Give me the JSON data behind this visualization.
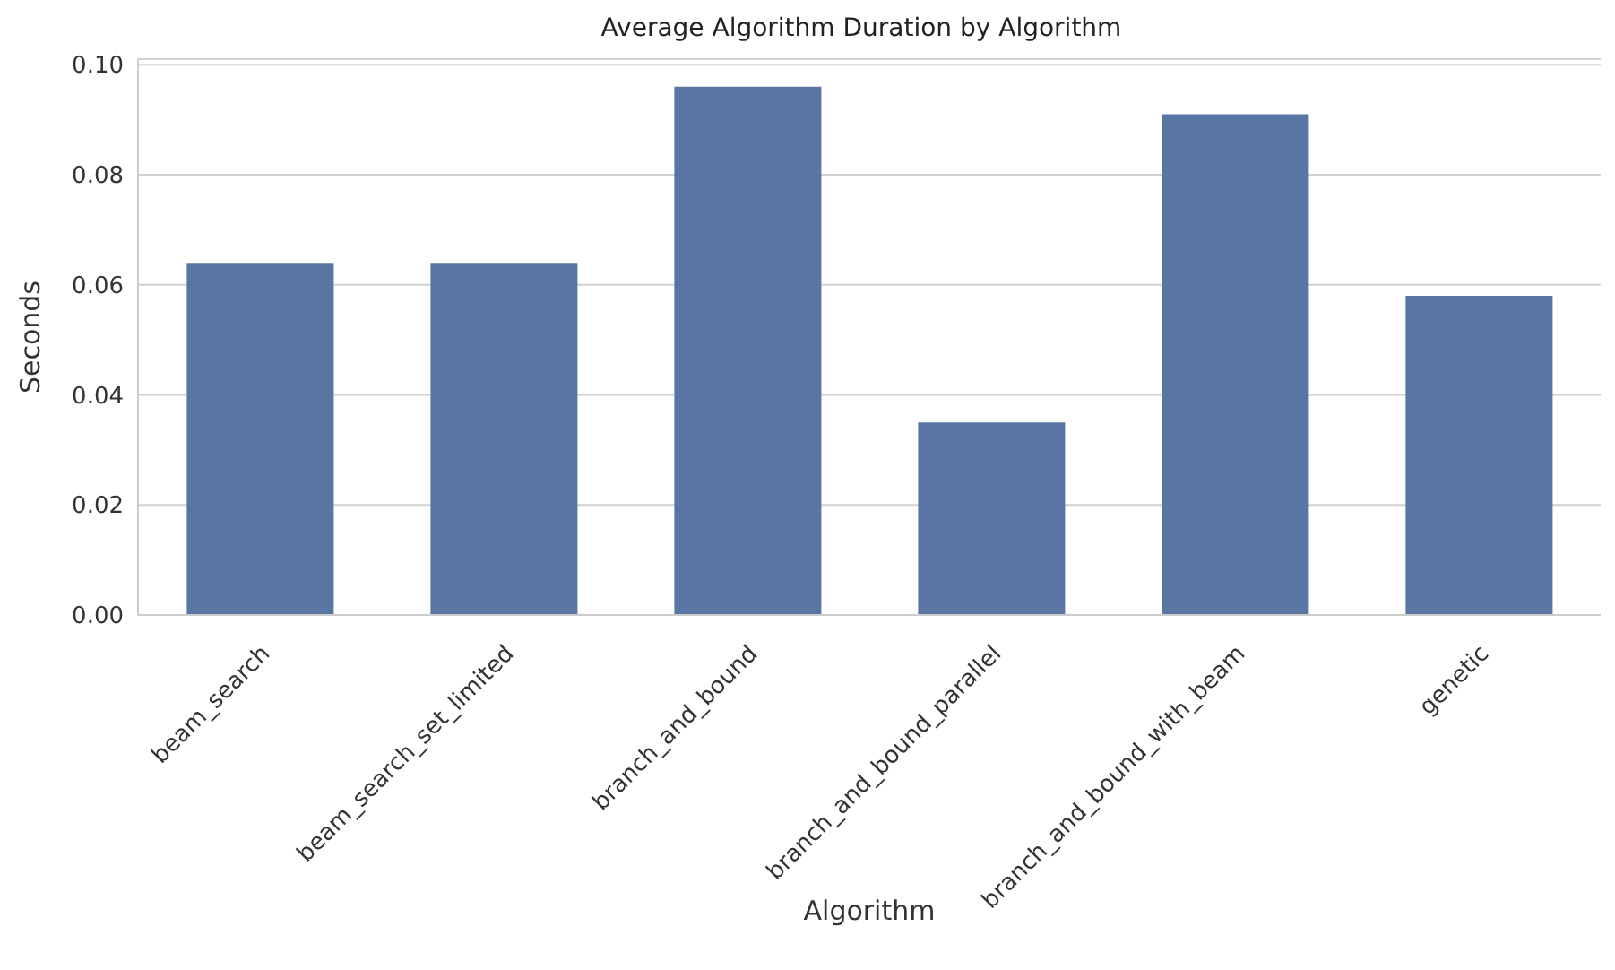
{
  "chart_data": {
    "type": "bar",
    "title": "Average Algorithm Duration by Algorithm",
    "xlabel": "Algorithm",
    "ylabel": "Seconds",
    "categories": [
      "beam_search",
      "beam_search_set_limited",
      "branch_and_bound",
      "branch_and_bound_parallel",
      "branch_and_bound_with_beam",
      "genetic"
    ],
    "values": [
      0.064,
      0.064,
      0.096,
      0.035,
      0.091,
      0.058
    ],
    "color": "#5975a4",
    "ylim": [
      0,
      0.101
    ],
    "yticks": [
      {
        "value": 0,
        "label": "0.00"
      },
      {
        "value": 0.02,
        "label": "0.02"
      },
      {
        "value": 0.04,
        "label": "0.04"
      },
      {
        "value": 0.06,
        "label": "0.06"
      },
      {
        "value": 0.08,
        "label": "0.08"
      },
      {
        "value": 0.1,
        "label": "0.10"
      }
    ],
    "grid": "y"
  }
}
